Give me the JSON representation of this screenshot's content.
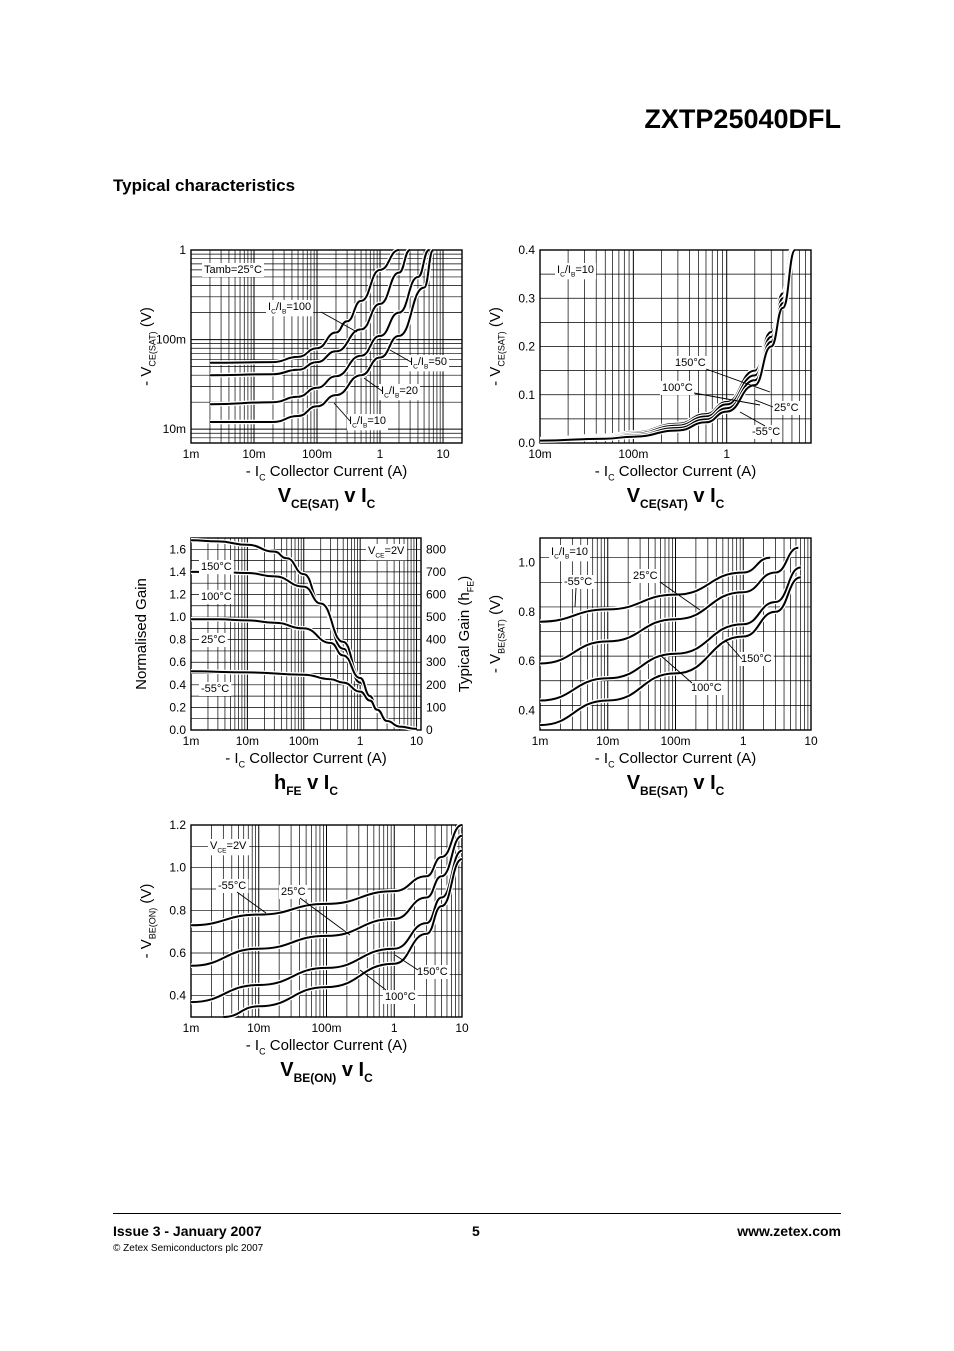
{
  "header": {
    "part_number": "ZXTP25040DFL",
    "section_title": "Typical characteristics"
  },
  "footer": {
    "issue": "Issue 3 - January 2007",
    "copyright": "© Zetex Semiconductors plc 2007",
    "page": "5",
    "website": "www.zetex.com"
  },
  "chart_data": [
    {
      "id": "vcesat-ratio",
      "type": "line",
      "title_main": "V",
      "title_sub": "CE(SAT)",
      "title_tail": " v I",
      "title_tail_sub": "C",
      "ylabel_main": "- V",
      "ylabel_sub": "CE(SAT)",
      "ylabel_unit": " (V)",
      "xlabel_pre": "- I",
      "xlabel_sub": "C",
      "xlabel_main": "  Collector Current (A)",
      "x_scale": "log",
      "xlim": [
        0.001,
        20
      ],
      "x_ticks": [
        0.001,
        0.01,
        0.1,
        1,
        10
      ],
      "x_tick_labels": [
        "1m",
        "10m",
        "100m",
        "1",
        "10"
      ],
      "y_scale": "log",
      "ylim": [
        0.007,
        1
      ],
      "y_ticks": [
        0.01,
        0.1,
        1
      ],
      "y_tick_labels": [
        "10m",
        "100m",
        "1"
      ],
      "grid": true,
      "note": "Tamb=25°C",
      "series": [
        {
          "name": "IC/IB=100",
          "x": [
            0.002,
            0.02,
            0.05,
            0.1,
            0.2,
            0.3,
            0.5,
            1,
            2
          ],
          "y": [
            0.055,
            0.056,
            0.064,
            0.08,
            0.12,
            0.16,
            0.27,
            0.6,
            1.0
          ]
        },
        {
          "name": "IC/IB=50",
          "x": [
            0.002,
            0.02,
            0.05,
            0.1,
            0.2,
            0.5,
            1,
            2,
            3
          ],
          "y": [
            0.04,
            0.041,
            0.046,
            0.056,
            0.074,
            0.13,
            0.25,
            0.56,
            1.0
          ]
        },
        {
          "name": "IC/IB=20",
          "x": [
            0.002,
            0.02,
            0.05,
            0.1,
            0.2,
            0.5,
            1,
            2,
            4,
            6
          ],
          "y": [
            0.019,
            0.02,
            0.023,
            0.029,
            0.039,
            0.066,
            0.11,
            0.2,
            0.5,
            1.0
          ]
        },
        {
          "name": "IC/IB=10",
          "x": [
            0.002,
            0.02,
            0.05,
            0.1,
            0.2,
            0.5,
            1,
            2,
            5,
            7
          ],
          "y": [
            0.012,
            0.012,
            0.014,
            0.018,
            0.024,
            0.04,
            0.063,
            0.11,
            0.38,
            1.0
          ]
        }
      ],
      "annotations": [
        {
          "main": "I",
          "sub": "C",
          "mid": "/I",
          "sub2": "B",
          "tail": "=100"
        },
        {
          "main": "I",
          "sub": "C",
          "mid": "/I",
          "sub2": "B",
          "tail": "=50"
        },
        {
          "main": "I",
          "sub": "C",
          "mid": "/I",
          "sub2": "B",
          "tail": "=20"
        },
        {
          "main": "I",
          "sub": "C",
          "mid": "/I",
          "sub2": "B",
          "tail": "=10"
        }
      ]
    },
    {
      "id": "vcesat-temp",
      "type": "line",
      "title_main": "V",
      "title_sub": "CE(SAT)",
      "title_tail": " v I",
      "title_tail_sub": "C",
      "ylabel_main": "- V",
      "ylabel_sub": "CE(SAT)",
      "ylabel_unit": " (V)",
      "xlabel_pre": "- I",
      "xlabel_sub": "C",
      "xlabel_main": "  Collector Current (A)",
      "x_scale": "log",
      "xlim": [
        0.01,
        8
      ],
      "x_ticks": [
        0.01,
        0.1,
        1
      ],
      "x_tick_labels": [
        "10m",
        "100m",
        "1"
      ],
      "y_scale": "linear",
      "ylim": [
        0,
        0.4
      ],
      "y_ticks": [
        0,
        0.1,
        0.2,
        0.3,
        0.4
      ],
      "y_tick_labels": [
        "0.0",
        "0.1",
        "0.2",
        "0.3",
        "0.4"
      ],
      "grid": true,
      "note_main": "I",
      "note_sub": "C",
      "note_mid": "/I",
      "note_sub2": "B",
      "note_tail": "=10",
      "series": [
        {
          "name": "150°C",
          "x": [
            0.01,
            0.05,
            0.1,
            0.3,
            0.6,
            1,
            2,
            3,
            4,
            5
          ],
          "y": [
            0.008,
            0.015,
            0.022,
            0.04,
            0.06,
            0.085,
            0.15,
            0.23,
            0.31,
            0.4
          ]
        },
        {
          "name": "100°C",
          "x": [
            0.01,
            0.05,
            0.1,
            0.3,
            0.6,
            1,
            2,
            3,
            4,
            5.2
          ],
          "y": [
            0.007,
            0.013,
            0.019,
            0.036,
            0.055,
            0.08,
            0.14,
            0.22,
            0.3,
            0.4
          ]
        },
        {
          "name": "25°C",
          "x": [
            0.01,
            0.05,
            0.1,
            0.3,
            0.6,
            1,
            2,
            3,
            4,
            5.3
          ],
          "y": [
            0.006,
            0.011,
            0.016,
            0.031,
            0.049,
            0.072,
            0.13,
            0.21,
            0.29,
            0.4
          ]
        },
        {
          "name": "-55°C",
          "x": [
            0.01,
            0.05,
            0.1,
            0.3,
            0.6,
            1,
            2,
            3,
            4,
            5.4
          ],
          "y": [
            0.005,
            0.009,
            0.013,
            0.026,
            0.043,
            0.065,
            0.12,
            0.2,
            0.28,
            0.4
          ]
        }
      ]
    },
    {
      "id": "hfe",
      "type": "line",
      "title_main": "h",
      "title_sub": "FE",
      "title_tail": " v I",
      "title_tail_sub": "C",
      "ylabel": "Normalised Gain",
      "y2label_main": "Typical Gain (h",
      "y2label_sub": "FE",
      "y2label_tail": ")",
      "xlabel_pre": "- I",
      "xlabel_sub": "C",
      "xlabel_main": "  Collector Current (A)",
      "x_scale": "log",
      "xlim": [
        0.001,
        12
      ],
      "x_ticks": [
        0.001,
        0.01,
        0.1,
        1,
        10
      ],
      "x_tick_labels": [
        "1m",
        "10m",
        "100m",
        "1",
        "10"
      ],
      "y_scale": "linear",
      "ylim": [
        0,
        1.7
      ],
      "y_ticks": [
        0,
        0.2,
        0.4,
        0.6,
        0.8,
        1.0,
        1.2,
        1.4,
        1.6
      ],
      "y_tick_labels": [
        "0.0",
        "0.2",
        "0.4",
        "0.6",
        "0.8",
        "1.0",
        "1.2",
        "1.4",
        "1.6"
      ],
      "y2lim": [
        0,
        850
      ],
      "y2_ticks": [
        0,
        100,
        200,
        300,
        400,
        500,
        600,
        700,
        800
      ],
      "y2_tick_labels": [
        "0",
        "100",
        "200",
        "300",
        "400",
        "500",
        "600",
        "700",
        "800"
      ],
      "grid": true,
      "note_main": "V",
      "note_sub": "CE",
      "note_tail": "=2V",
      "series": [
        {
          "name": "150°C",
          "x": [
            0.001,
            0.003,
            0.01,
            0.03,
            0.05,
            0.1,
            0.2,
            0.5,
            1,
            1.5,
            2,
            3,
            5,
            10
          ],
          "y": [
            1.68,
            1.67,
            1.64,
            1.58,
            1.52,
            1.38,
            1.12,
            0.72,
            0.42,
            0.26,
            0.17,
            0.08,
            0.03,
            0.01
          ]
        },
        {
          "name": "100°C",
          "x": [
            0.001,
            0.003,
            0.01,
            0.03,
            0.1,
            0.2,
            0.5,
            1,
            1.5,
            2,
            3,
            5,
            10
          ],
          "y": [
            1.4,
            1.4,
            1.39,
            1.36,
            1.27,
            1.12,
            0.78,
            0.47,
            0.28,
            0.17,
            0.08,
            0.03,
            0.01
          ]
        },
        {
          "name": "25°C",
          "x": [
            0.001,
            0.003,
            0.01,
            0.03,
            0.1,
            0.3,
            0.5,
            1,
            1.5,
            2,
            3,
            5,
            10
          ],
          "y": [
            0.98,
            0.98,
            0.97,
            0.95,
            0.9,
            0.77,
            0.66,
            0.46,
            0.3,
            0.18,
            0.08,
            0.03,
            0.01
          ]
        },
        {
          "name": "-55°C",
          "x": [
            0.001,
            0.01,
            0.1,
            0.3,
            0.5,
            1,
            1.5,
            2,
            3,
            5,
            10
          ],
          "y": [
            0.52,
            0.51,
            0.49,
            0.45,
            0.42,
            0.34,
            0.26,
            0.18,
            0.08,
            0.03,
            0.01
          ]
        }
      ]
    },
    {
      "id": "vbesat",
      "type": "line",
      "title_main": "V",
      "title_sub": "BE(SAT)",
      "title_tail": " v I",
      "title_tail_sub": "C",
      "ylabel_main": "- V",
      "ylabel_sub": "BE(SAT)",
      "ylabel_unit": " (V)",
      "xlabel_pre": "- I",
      "xlabel_sub": "C",
      "xlabel_main": "  Collector Current (A)",
      "x_scale": "log",
      "xlim": [
        0.001,
        10
      ],
      "x_ticks": [
        0.001,
        0.01,
        0.1,
        1,
        10
      ],
      "x_tick_labels": [
        "1m",
        "10m",
        "100m",
        "1",
        "10"
      ],
      "y_scale": "linear",
      "ylim": [
        0.32,
        1.1
      ],
      "y_ticks": [
        0.4,
        0.6,
        0.8,
        1.0
      ],
      "y_tick_labels": [
        "0.4",
        "0.6",
        "0.8",
        "1.0"
      ],
      "grid": true,
      "note_main": "I",
      "note_sub": "C",
      "note_mid": "/I",
      "note_sub2": "B",
      "note_tail": "=10",
      "series": [
        {
          "name": "-55°C",
          "x": [
            0.001,
            0.01,
            0.1,
            1,
            2.5
          ],
          "y": [
            0.76,
            0.81,
            0.87,
            0.96,
            1.02
          ]
        },
        {
          "name": "25°C",
          "x": [
            0.001,
            0.01,
            0.1,
            1,
            3,
            6.5
          ],
          "y": [
            0.59,
            0.68,
            0.77,
            0.88,
            0.96,
            1.06
          ]
        },
        {
          "name": "150°C",
          "x": [
            0.001,
            0.01,
            0.1,
            1,
            3,
            7
          ],
          "y": [
            0.44,
            0.53,
            0.63,
            0.75,
            0.84,
            0.98
          ]
        },
        {
          "name": "100°C",
          "x": [
            0.001,
            0.01,
            0.1,
            1,
            3,
            7
          ],
          "y": [
            0.34,
            0.44,
            0.55,
            0.7,
            0.8,
            0.94
          ]
        }
      ]
    },
    {
      "id": "vbeon",
      "type": "line",
      "title_main": "V",
      "title_sub": "BE(ON)",
      "title_tail": " v I",
      "title_tail_sub": "C",
      "ylabel_main": "- V",
      "ylabel_sub": "BE(ON)",
      "ylabel_unit": " (V)",
      "xlabel_pre": "- I",
      "xlabel_sub": "C",
      "xlabel_main": "  Collector Current (A)",
      "x_scale": "log",
      "xlim": [
        0.001,
        10
      ],
      "x_ticks": [
        0.001,
        0.01,
        0.1,
        1,
        10
      ],
      "x_tick_labels": [
        "1m",
        "10m",
        "100m",
        "1",
        "10"
      ],
      "y_scale": "linear",
      "ylim": [
        0.3,
        1.2
      ],
      "y_ticks": [
        0.4,
        0.6,
        0.8,
        1.0,
        1.2
      ],
      "y_tick_labels": [
        "0.4",
        "0.6",
        "0.8",
        "1.0",
        "1.2"
      ],
      "grid": true,
      "note_main": "V",
      "note_sub": "CE",
      "note_tail": "=2V",
      "series": [
        {
          "name": "-55°C",
          "x": [
            0.001,
            0.01,
            0.1,
            1,
            3,
            5,
            10
          ],
          "y": [
            0.73,
            0.78,
            0.83,
            0.89,
            0.96,
            1.05,
            1.2
          ]
        },
        {
          "name": "25°C",
          "x": [
            0.001,
            0.01,
            0.1,
            1,
            3,
            5,
            10
          ],
          "y": [
            0.54,
            0.62,
            0.68,
            0.76,
            0.86,
            0.96,
            1.15
          ]
        },
        {
          "name": "150°C",
          "x": [
            0.001,
            0.01,
            0.1,
            1,
            3,
            5,
            10
          ],
          "y": [
            0.37,
            0.45,
            0.53,
            0.62,
            0.74,
            0.86,
            1.08
          ]
        },
        {
          "name": "100°C",
          "x": [
            0.003,
            0.01,
            0.1,
            1,
            3,
            5,
            10
          ],
          "y": [
            0.3,
            0.35,
            0.44,
            0.55,
            0.69,
            0.82,
            1.04
          ]
        }
      ]
    }
  ]
}
